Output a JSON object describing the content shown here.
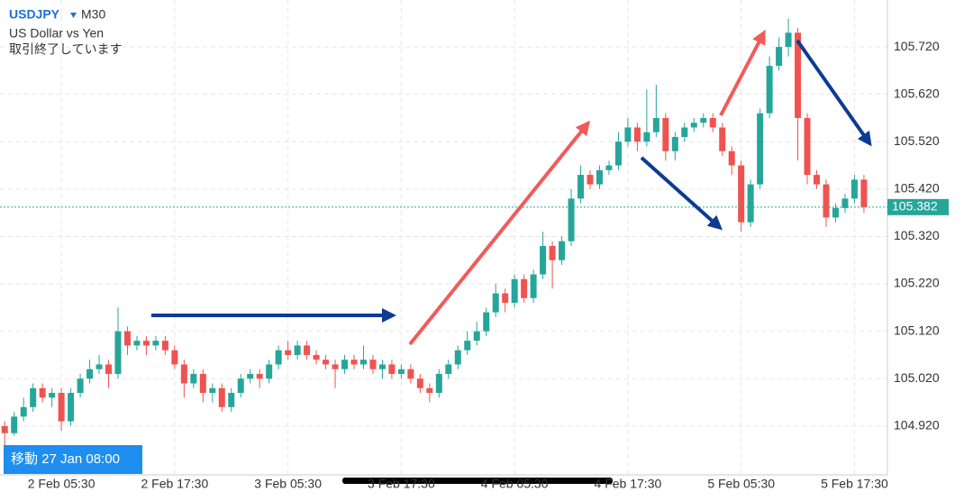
{
  "header": {
    "symbol": "USDJPY",
    "timeframe": "M30",
    "name": "US Dollar vs Yen",
    "status": "取引終了しています"
  },
  "scroll_label": "移動 27 Jan 08:00",
  "chart_data": {
    "type": "candlestick",
    "up_color": "#26a69a",
    "down_color": "#ef5350",
    "grid": true,
    "categories": [
      null,
      null,
      null,
      null,
      null,
      null,
      "2 Feb 05:30",
      null,
      null,
      null,
      null,
      null,
      null,
      null,
      null,
      null,
      null,
      null,
      "2 Feb 17:30",
      null,
      null,
      null,
      null,
      null,
      null,
      null,
      null,
      null,
      null,
      null,
      "3 Feb 05:30",
      null,
      null,
      null,
      null,
      null,
      null,
      null,
      null,
      null,
      null,
      null,
      "3 Feb 17:30",
      null,
      null,
      null,
      null,
      null,
      null,
      null,
      null,
      null,
      null,
      null,
      "4 Feb 05:30",
      null,
      null,
      null,
      null,
      null,
      null,
      null,
      null,
      null,
      null,
      null,
      "4 Feb 17:30",
      null,
      null,
      null,
      null,
      null,
      null,
      null,
      null,
      null,
      null,
      null,
      "5 Feb 05:30",
      null,
      null,
      null,
      null,
      null,
      null,
      null,
      null,
      null,
      null,
      null,
      "5 Feb 17:30",
      null
    ],
    "open": [
      104.92,
      104.905,
      104.94,
      104.96,
      105.0,
      104.98,
      104.99,
      104.93,
      104.99,
      105.02,
      105.04,
      105.05,
      105.03,
      105.12,
      105.09,
      105.1,
      105.09,
      105.1,
      105.08,
      105.05,
      105.01,
      105.03,
      104.99,
      105.0,
      104.96,
      104.99,
      105.02,
      105.03,
      105.02,
      105.05,
      105.08,
      105.07,
      105.09,
      105.07,
      105.06,
      105.05,
      105.04,
      105.06,
      105.05,
      105.06,
      105.04,
      105.05,
      105.03,
      105.04,
      105.02,
      105.0,
      104.99,
      105.03,
      105.05,
      105.08,
      105.1,
      105.12,
      105.16,
      105.2,
      105.18,
      105.23,
      105.19,
      105.24,
      105.3,
      105.27,
      105.31,
      105.4,
      105.45,
      105.43,
      105.46,
      105.47,
      105.52,
      105.55,
      105.52,
      105.54,
      105.57,
      105.5,
      105.53,
      105.55,
      105.56,
      105.57,
      105.55,
      105.5,
      105.47,
      105.35,
      105.43,
      105.58,
      105.68,
      105.72,
      105.75,
      105.57,
      105.45,
      105.43,
      105.36,
      105.38,
      105.4,
      105.44
    ],
    "high": [
      104.93,
      104.95,
      104.98,
      105.01,
      105.01,
      105.0,
      105.0,
      105.0,
      105.03,
      105.06,
      105.07,
      105.06,
      105.17,
      105.13,
      105.11,
      105.11,
      105.11,
      105.11,
      105.09,
      105.06,
      105.04,
      105.04,
      105.01,
      105.01,
      105.0,
      105.03,
      105.04,
      105.04,
      105.06,
      105.09,
      105.1,
      105.1,
      105.1,
      105.08,
      105.07,
      105.06,
      105.07,
      105.07,
      105.09,
      105.07,
      105.06,
      105.06,
      105.05,
      105.05,
      105.03,
      105.01,
      105.04,
      105.06,
      105.09,
      105.12,
      105.14,
      105.17,
      105.22,
      105.21,
      105.24,
      105.24,
      105.25,
      105.33,
      105.31,
      105.32,
      105.42,
      105.47,
      105.46,
      105.47,
      105.48,
      105.54,
      105.57,
      105.56,
      105.63,
      105.64,
      105.58,
      105.54,
      105.56,
      105.57,
      105.58,
      105.58,
      105.56,
      105.51,
      105.48,
      105.44,
      105.59,
      105.7,
      105.74,
      105.78,
      105.76,
      105.58,
      105.46,
      105.44,
      105.39,
      105.41,
      105.45,
      105.45
    ],
    "low": [
      104.87,
      104.9,
      104.93,
      104.95,
      104.97,
      104.96,
      104.91,
      104.92,
      104.98,
      105.01,
      105.03,
      105.0,
      105.02,
      105.07,
      105.08,
      105.07,
      105.08,
      105.07,
      105.04,
      104.98,
      105.0,
      104.97,
      104.97,
      104.95,
      104.95,
      104.98,
      105.01,
      105.0,
      105.01,
      105.04,
      105.06,
      105.06,
      105.06,
      105.05,
      105.04,
      105.0,
      105.03,
      105.04,
      105.04,
      105.03,
      105.02,
      105.02,
      105.02,
      105.01,
      104.99,
      104.97,
      104.98,
      105.02,
      105.04,
      105.07,
      105.09,
      105.11,
      105.15,
      105.16,
      105.17,
      105.18,
      105.18,
      105.23,
      105.21,
      105.26,
      105.3,
      105.39,
      105.42,
      105.42,
      105.45,
      105.46,
      105.51,
      105.5,
      105.51,
      105.53,
      105.48,
      105.48,
      105.52,
      105.54,
      105.55,
      105.54,
      105.49,
      105.45,
      105.33,
      105.34,
      105.42,
      105.57,
      105.67,
      105.7,
      105.48,
      105.43,
      105.42,
      105.34,
      105.35,
      105.37,
      105.39,
      105.37
    ],
    "close": [
      104.905,
      104.94,
      104.96,
      105.0,
      104.98,
      104.99,
      104.93,
      104.99,
      105.02,
      105.04,
      105.05,
      105.03,
      105.12,
      105.09,
      105.1,
      105.09,
      105.1,
      105.08,
      105.05,
      105.01,
      105.03,
      104.99,
      105.0,
      104.96,
      104.99,
      105.02,
      105.03,
      105.02,
      105.05,
      105.08,
      105.07,
      105.09,
      105.07,
      105.06,
      105.05,
      105.04,
      105.06,
      105.05,
      105.06,
      105.04,
      105.05,
      105.03,
      105.04,
      105.02,
      105.0,
      104.99,
      105.03,
      105.05,
      105.08,
      105.1,
      105.12,
      105.16,
      105.2,
      105.18,
      105.23,
      105.19,
      105.24,
      105.3,
      105.27,
      105.31,
      105.4,
      105.45,
      105.43,
      105.46,
      105.47,
      105.52,
      105.55,
      105.52,
      105.54,
      105.57,
      105.5,
      105.53,
      105.55,
      105.56,
      105.57,
      105.55,
      105.5,
      105.47,
      105.35,
      105.43,
      105.58,
      105.68,
      105.72,
      105.75,
      105.57,
      105.45,
      105.43,
      105.36,
      105.38,
      105.4,
      105.44,
      105.382
    ],
    "ylim": [
      104.817,
      105.819
    ],
    "yticks": [
      {
        "value": 104.92,
        "label": "104.920"
      },
      {
        "value": 105.02,
        "label": "105.020"
      },
      {
        "value": 105.12,
        "label": "105.120"
      },
      {
        "value": 105.22,
        "label": "105.220"
      },
      {
        "value": 105.32,
        "label": "105.320"
      },
      {
        "value": 105.42,
        "label": "105.420"
      },
      {
        "value": 105.52,
        "label": "105.520"
      },
      {
        "value": 105.62,
        "label": "105.620"
      },
      {
        "value": 105.72,
        "label": "105.720"
      }
    ]
  }
}
